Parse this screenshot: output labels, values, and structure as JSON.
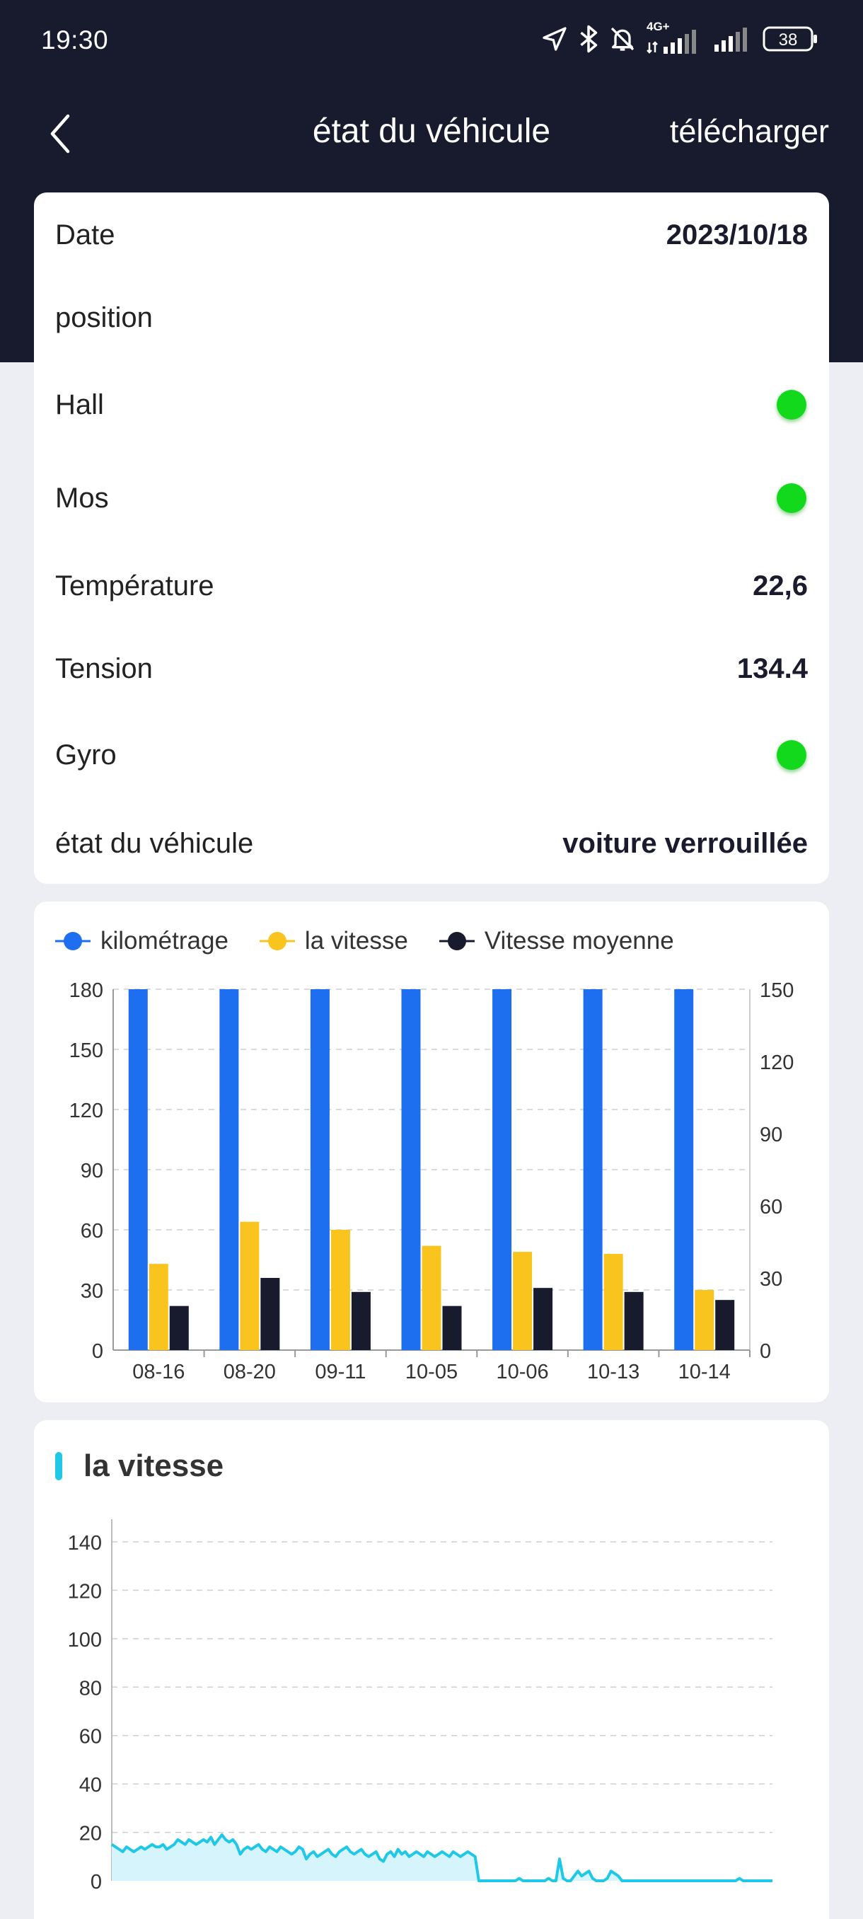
{
  "status_bar": {
    "time": "19:30",
    "network": "4G+",
    "battery": "38"
  },
  "nav": {
    "title": "état du véhicule",
    "action": "télécharger"
  },
  "info": {
    "date_label": "Date",
    "date_value": "2023/10/18",
    "position_label": "position",
    "position_value": "",
    "hall_label": "Hall",
    "mos_label": "Mos",
    "temperature_label": "Température",
    "temperature_value": "22,6",
    "tension_label": "Tension",
    "tension_value": "134.4",
    "gyro_label": "Gyro",
    "state_label": "état du véhicule",
    "state_value": "voiture verrouillée",
    "indicator_color": "#13d91c"
  },
  "chart_data": [
    {
      "type": "bar",
      "legend_position": "top-left",
      "categories": [
        "08-16",
        "08-20",
        "09-11",
        "10-05",
        "10-06",
        "10-13",
        "10-14"
      ],
      "series": [
        {
          "name": "kilométrage",
          "color": "#1e6ff0",
          "axis": "left",
          "values": [
            180,
            180,
            180,
            180,
            180,
            180,
            180
          ]
        },
        {
          "name": "la vitesse",
          "color": "#f9c41d",
          "axis": "left",
          "values": [
            43,
            64,
            60,
            52,
            49,
            48,
            30
          ]
        },
        {
          "name": "Vitesse moyenne",
          "color": "#181a2e",
          "axis": "left",
          "values": [
            22,
            36,
            29,
            22,
            31,
            29,
            25
          ]
        }
      ],
      "y_left": {
        "min": 0,
        "max": 180,
        "ticks": [
          0,
          30,
          60,
          90,
          120,
          150,
          180
        ]
      },
      "y_right": {
        "min": 0,
        "max": 150,
        "ticks": [
          0,
          30,
          60,
          90,
          120,
          150
        ]
      },
      "grid": true
    },
    {
      "type": "area",
      "title": "la vitesse",
      "color": "#1ec8e6",
      "fill": "#d6f4fb",
      "ylim": [
        0,
        140
      ],
      "y_ticks": [
        0,
        20,
        40,
        60,
        80,
        100,
        120,
        140
      ],
      "grid": true,
      "values": [
        15,
        14,
        13,
        12,
        14,
        13,
        12,
        13,
        14,
        13,
        14,
        15,
        14,
        14,
        15,
        13,
        14,
        15,
        17,
        16,
        15,
        17,
        16,
        15,
        16,
        17,
        16,
        18,
        15,
        17,
        19,
        17,
        16,
        17,
        15,
        11,
        13,
        14,
        13,
        14,
        15,
        13,
        12,
        14,
        13,
        12,
        14,
        13,
        12,
        11,
        12,
        14,
        13,
        9,
        11,
        12,
        10,
        11,
        12,
        13,
        11,
        10,
        12,
        13,
        14,
        12,
        11,
        12,
        13,
        11,
        10,
        11,
        12,
        9,
        8,
        11,
        12,
        10,
        13,
        11,
        12,
        10,
        11,
        12,
        11,
        10,
        12,
        11,
        10,
        11,
        12,
        11,
        10,
        12,
        11,
        10,
        11,
        12,
        11,
        10,
        0,
        0,
        0,
        0,
        0,
        0,
        0,
        0,
        0,
        0,
        0,
        1,
        0,
        0,
        0,
        0,
        0,
        0,
        0,
        1,
        0,
        0,
        9,
        1,
        0,
        0,
        2,
        4,
        2,
        3,
        4,
        1,
        0,
        0,
        0,
        1,
        4,
        3,
        2,
        0,
        0,
        0,
        0,
        0,
        0,
        0,
        0,
        0,
        0,
        0,
        0,
        0,
        0,
        0,
        0,
        0,
        0,
        0,
        0,
        0,
        0,
        0,
        0,
        0,
        0,
        0,
        0,
        0,
        0,
        0,
        0,
        1,
        0,
        0,
        0,
        0,
        0,
        0,
        0,
        0,
        0
      ]
    }
  ]
}
